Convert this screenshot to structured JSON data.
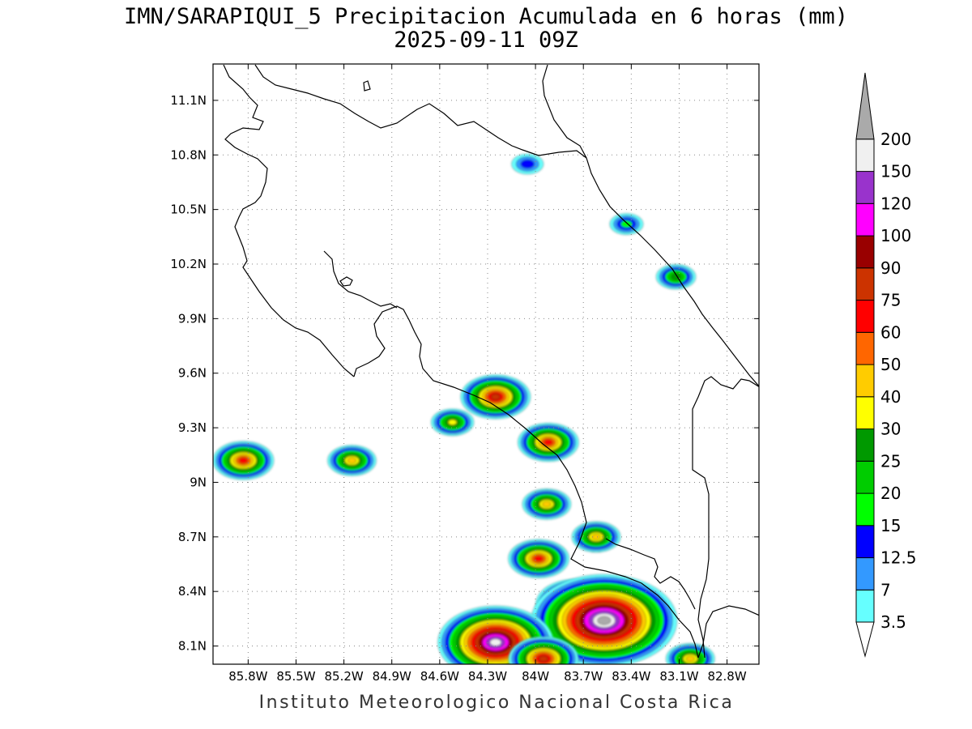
{
  "title": "IMN/SARAPIQUI_5 Precipitacion Acumulada en 6 horas (mm)",
  "subtitle": "2025-09-11 09Z",
  "credit": "Instituto Meteorologico Nacional Costa Rica",
  "map": {
    "lon_range": [
      -86.02,
      -82.6
    ],
    "lat_range": [
      8.0,
      11.3
    ],
    "lon_ticks": [
      {
        "value": -85.8,
        "label": "85.8W"
      },
      {
        "value": -85.5,
        "label": "85.5W"
      },
      {
        "value": -85.2,
        "label": "85.2W"
      },
      {
        "value": -84.9,
        "label": "84.9W"
      },
      {
        "value": -84.6,
        "label": "84.6W"
      },
      {
        "value": -84.3,
        "label": "84.3W"
      },
      {
        "value": -84.0,
        "label": "84W"
      },
      {
        "value": -83.7,
        "label": "83.7W"
      },
      {
        "value": -83.4,
        "label": "83.4W"
      },
      {
        "value": -83.1,
        "label": "83.1W"
      },
      {
        "value": -82.8,
        "label": "82.8W"
      }
    ],
    "lat_ticks": [
      {
        "value": 11.1,
        "label": "11.1N"
      },
      {
        "value": 10.8,
        "label": "10.8N"
      },
      {
        "value": 10.5,
        "label": "10.5N"
      },
      {
        "value": 10.2,
        "label": "10.2N"
      },
      {
        "value": 9.9,
        "label": "9.9N"
      },
      {
        "value": 9.6,
        "label": "9.6N"
      },
      {
        "value": 9.3,
        "label": "9.3N"
      },
      {
        "value": 9.0,
        "label": "9N"
      },
      {
        "value": 8.7,
        "label": "8.7N"
      },
      {
        "value": 8.4,
        "label": "8.4N"
      },
      {
        "value": 8.1,
        "label": "8.1N"
      }
    ]
  },
  "legend": {
    "labels": [
      "3.5",
      "7",
      "12.5",
      "15",
      "20",
      "25",
      "30",
      "40",
      "50",
      "60",
      "75",
      "90",
      "100",
      "120",
      "150",
      "200"
    ],
    "colors": [
      "#66ffff",
      "#3399ff",
      "#0000ff",
      "#00ff00",
      "#00cc00",
      "#009900",
      "#ffff00",
      "#ffcc00",
      "#ff6600",
      "#ff0000",
      "#cc3300",
      "#990000",
      "#ff00ff",
      "#9933cc",
      "#f0f0f0",
      "#aaaaaa"
    ]
  },
  "chart_data": {
    "type": "heatmap",
    "title": "IMN/SARAPIQUI_5 Precipitacion Acumulada en 6 horas (mm)",
    "subtitle": "2025-09-11 09Z",
    "xlim": [
      -86.02,
      -82.6
    ],
    "ylim": [
      8.0,
      11.3
    ],
    "colorbar_levels_mm": [
      3.5,
      7,
      12.5,
      15,
      20,
      25,
      30,
      40,
      50,
      60,
      75,
      90,
      100,
      120,
      150,
      200
    ],
    "grid": true,
    "cells": [
      {
        "lon": -84.25,
        "lat": 9.47,
        "peak_mm": 75
      },
      {
        "lon": -83.92,
        "lat": 9.22,
        "peak_mm": 60
      },
      {
        "lon": -85.83,
        "lat": 9.12,
        "peak_mm": 60
      },
      {
        "lon": -85.15,
        "lat": 9.12,
        "peak_mm": 40
      },
      {
        "lon": -84.52,
        "lat": 9.33,
        "peak_mm": 30
      },
      {
        "lon": -83.93,
        "lat": 8.88,
        "peak_mm": 40
      },
      {
        "lon": -83.62,
        "lat": 8.7,
        "peak_mm": 40
      },
      {
        "lon": -83.98,
        "lat": 8.58,
        "peak_mm": 60
      },
      {
        "lon": -83.75,
        "lat": 8.33,
        "peak_mm": 90
      },
      {
        "lon": -83.57,
        "lat": 8.24,
        "peak_mm": 200
      },
      {
        "lon": -84.25,
        "lat": 8.12,
        "peak_mm": 150
      },
      {
        "lon": -83.95,
        "lat": 8.03,
        "peak_mm": 75
      },
      {
        "lon": -83.03,
        "lat": 8.03,
        "peak_mm": 40
      },
      {
        "lon": -83.12,
        "lat": 10.13,
        "peak_mm": 25
      },
      {
        "lon": -83.43,
        "lat": 10.42,
        "peak_mm": 15
      },
      {
        "lon": -84.05,
        "lat": 10.75,
        "peak_mm": 12.5
      }
    ]
  }
}
